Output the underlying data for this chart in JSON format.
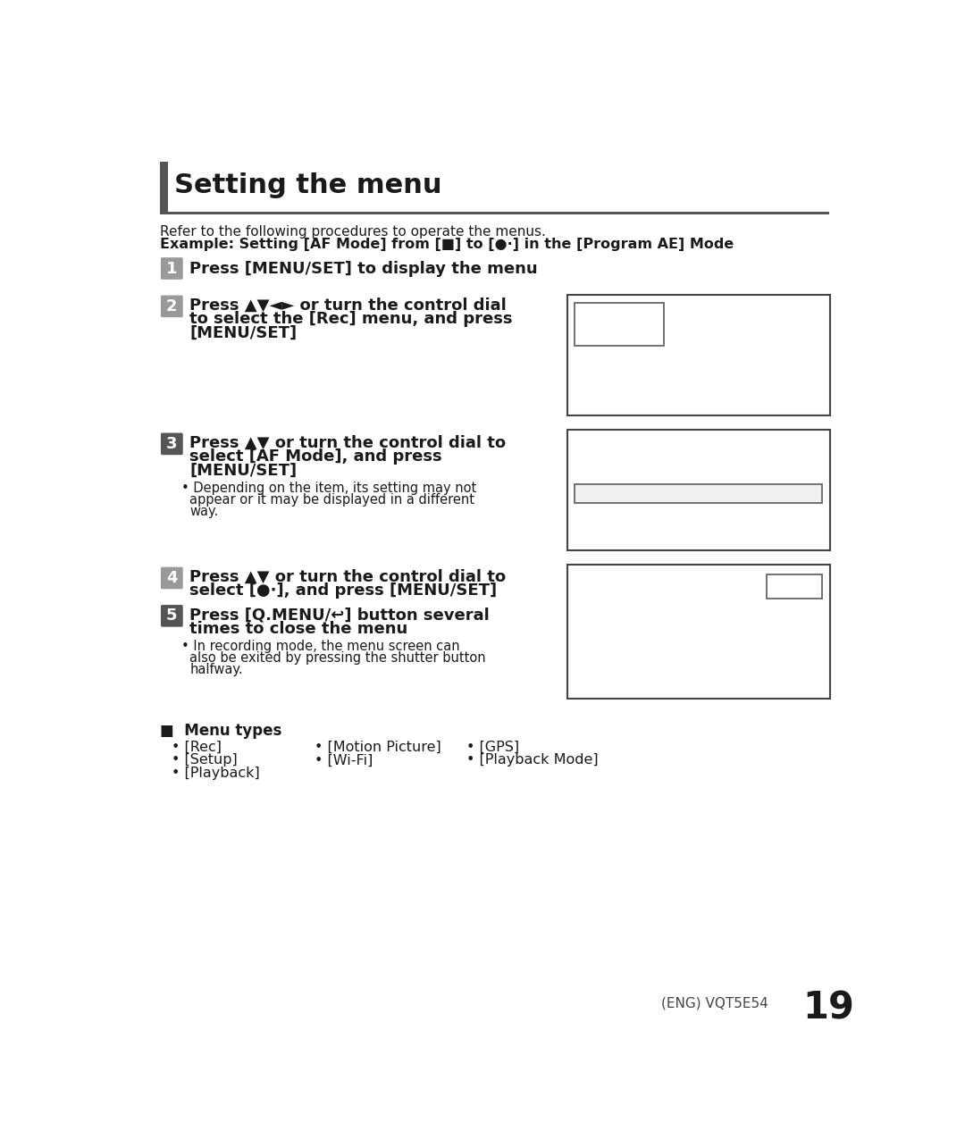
{
  "title": "Setting the menu",
  "bg_color": "#ffffff",
  "text_color": "#1a1a1a",
  "intro_text": "Refer to the following procedures to operate the menus.",
  "menu_types_header": "■  Menu types",
  "menu_col1": [
    "[Rec]",
    "[Setup]",
    "[Playback]"
  ],
  "menu_col2": [
    "[Motion Picture]",
    "[Wi-Fi]"
  ],
  "menu_col3": [
    "[GPS]",
    "[Playback Mode]"
  ],
  "footer": "(ENG) VQT5E54",
  "page_num": "19",
  "bar_color": "#555555",
  "badge_light": "#999999",
  "badge_dark": "#555555",
  "box_border": "#444444",
  "inner_box_border": "#666666",
  "title_fontsize": 22,
  "step_fontsize": 13,
  "sub_fontsize": 10.5,
  "intro_fontsize": 11,
  "menu_fontsize": 11.5
}
